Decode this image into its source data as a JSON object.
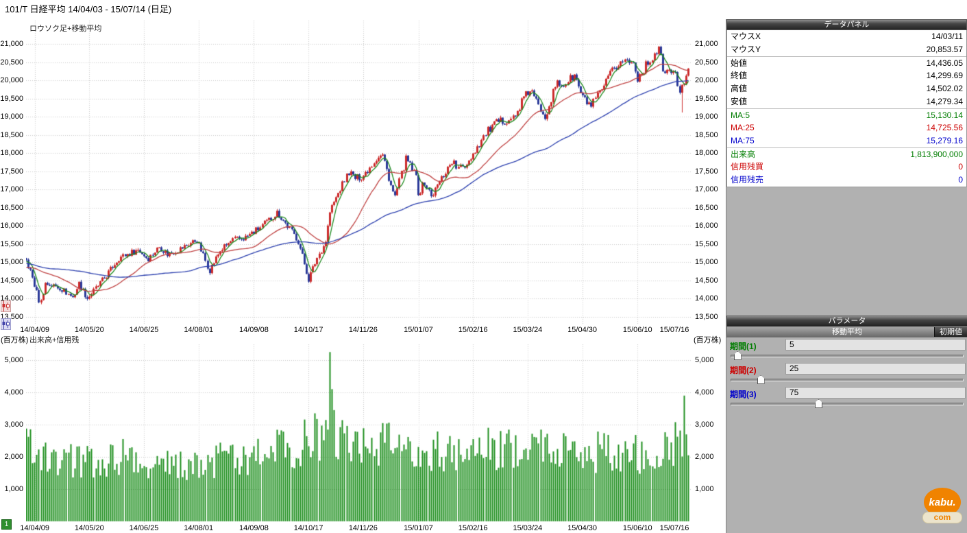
{
  "title": "101/T 日経平均  14/04/03 - 15/07/14 (日足)",
  "page_indicator": "1",
  "logo": {
    "text_top": "kabu.",
    "text_bottom": "com",
    "color": "#f08300"
  },
  "data_panel": {
    "title": "データパネル",
    "rows": [
      {
        "label": "マウスX",
        "value": "14/03/11",
        "color": "#000000"
      },
      {
        "label": "マウスY",
        "value": "20,853.57",
        "color": "#000000"
      },
      {
        "label": "始値",
        "value": "14,436.05",
        "color": "#000000"
      },
      {
        "label": "終値",
        "value": "14,299.69",
        "color": "#000000"
      },
      {
        "label": "高値",
        "value": "14,502.02",
        "color": "#000000"
      },
      {
        "label": "安値",
        "value": "14,279.34",
        "color": "#000000"
      },
      {
        "label": "MA:5",
        "value": "15,130.14",
        "color": "#007d00"
      },
      {
        "label": "MA:25",
        "value": "14,725.56",
        "color": "#cc0000"
      },
      {
        "label": "MA:75",
        "value": "15,279.16",
        "color": "#0000cc"
      },
      {
        "label": "出来高",
        "value": "1,813,900,000",
        "color": "#007d00"
      },
      {
        "label": "信用残買",
        "value": "0",
        "color": "#cc0000"
      },
      {
        "label": "信用残売",
        "value": "0",
        "color": "#0000cc"
      }
    ]
  },
  "parameters": {
    "title": "パラメータ",
    "subtitle": "移動平均",
    "reset_button": "初期値",
    "sliders": [
      {
        "label": "期間(1)",
        "value": "5",
        "color": "#007d00",
        "thumb_percent": 2
      },
      {
        "label": "期間(2)",
        "value": "25",
        "color": "#cc0000",
        "thumb_percent": 12
      },
      {
        "label": "期間(3)",
        "value": "75",
        "color": "#0000cc",
        "thumb_percent": 37
      }
    ]
  },
  "chart_data": {
    "price": {
      "type": "candlestick",
      "overlay_label": "ロウソク足+移動平均",
      "date_range": [
        "14/04/03",
        "15/07/14"
      ],
      "y_ticks": [
        21000,
        20500,
        20000,
        19500,
        19000,
        18500,
        18000,
        17500,
        17000,
        16500,
        16000,
        15500,
        15000,
        14500,
        14000,
        13500
      ],
      "x_axis_labels": [
        {
          "text": "14/04/09",
          "t": 0.013
        },
        {
          "text": "14/05/20",
          "t": 0.095
        },
        {
          "text": "14/06/25",
          "t": 0.177
        },
        {
          "text": "14/08/01",
          "t": 0.259
        },
        {
          "text": "14/09/08",
          "t": 0.342
        },
        {
          "text": "14/10/17",
          "t": 0.424
        },
        {
          "text": "14/11/26",
          "t": 0.506
        },
        {
          "text": "15/01/07",
          "t": 0.589
        },
        {
          "text": "15/02/16",
          "t": 0.671
        },
        {
          "text": "15/03/24",
          "t": 0.753
        },
        {
          "text": "15/04/30",
          "t": 0.835
        },
        {
          "text": "15/06/10",
          "t": 0.918
        },
        {
          "text": "15/07/16",
          "t": 1.0
        }
      ],
      "num_slots": 317,
      "last_candle_index": 314,
      "history_days": 95,
      "up_color": "#cc2b2b",
      "down_color": "#2b3a99",
      "history_waypoints": [
        [
          -0.3,
          15900
        ],
        [
          -0.28,
          16250
        ],
        [
          -0.25,
          15650
        ],
        [
          -0.21,
          15300
        ],
        [
          -0.19,
          14400
        ],
        [
          -0.15,
          14900
        ],
        [
          -0.11,
          15400
        ],
        [
          -0.065,
          14700
        ],
        [
          -0.04,
          14800
        ],
        [
          -0.02,
          14900
        ]
      ],
      "close_waypoints": [
        [
          0.0,
          15050
        ],
        [
          0.009,
          14610
        ],
        [
          0.019,
          13960
        ],
        [
          0.022,
          13910
        ],
        [
          0.028,
          14420
        ],
        [
          0.051,
          14300
        ],
        [
          0.07,
          14030
        ],
        [
          0.079,
          14420
        ],
        [
          0.092,
          14010
        ],
        [
          0.12,
          14630
        ],
        [
          0.139,
          15120
        ],
        [
          0.168,
          15350
        ],
        [
          0.183,
          15100
        ],
        [
          0.2,
          15440
        ],
        [
          0.212,
          15220
        ],
        [
          0.231,
          15370
        ],
        [
          0.256,
          15620
        ],
        [
          0.275,
          14780
        ],
        [
          0.291,
          15320
        ],
        [
          0.31,
          15610
        ],
        [
          0.328,
          15670
        ],
        [
          0.351,
          15950
        ],
        [
          0.377,
          16370
        ],
        [
          0.389,
          16080
        ],
        [
          0.408,
          15600
        ],
        [
          0.418,
          14940
        ],
        [
          0.424,
          14530
        ],
        [
          0.437,
          15140
        ],
        [
          0.449,
          15550
        ],
        [
          0.456,
          16410
        ],
        [
          0.468,
          16880
        ],
        [
          0.484,
          17490
        ],
        [
          0.494,
          17300
        ],
        [
          0.506,
          17380
        ],
        [
          0.528,
          17920
        ],
        [
          0.535,
          17940
        ],
        [
          0.553,
          16760
        ],
        [
          0.57,
          17850
        ],
        [
          0.582,
          17450
        ],
        [
          0.585,
          17410
        ],
        [
          0.589,
          16880
        ],
        [
          0.598,
          17200
        ],
        [
          0.608,
          16800
        ],
        [
          0.623,
          17300
        ],
        [
          0.64,
          17800
        ],
        [
          0.647,
          17560
        ],
        [
          0.658,
          17650
        ],
        [
          0.671,
          17990
        ],
        [
          0.692,
          18600
        ],
        [
          0.706,
          18830
        ],
        [
          0.734,
          18990
        ],
        [
          0.744,
          19440
        ],
        [
          0.757,
          19750
        ],
        [
          0.769,
          19290
        ],
        [
          0.779,
          19030
        ],
        [
          0.796,
          19910
        ],
        [
          0.806,
          19870
        ],
        [
          0.823,
          20130
        ],
        [
          0.835,
          19520
        ],
        [
          0.848,
          19290
        ],
        [
          0.864,
          19730
        ],
        [
          0.88,
          20260
        ],
        [
          0.896,
          20560
        ],
        [
          0.913,
          20460
        ],
        [
          0.918,
          20050
        ],
        [
          0.93,
          20390
        ],
        [
          0.949,
          20870
        ],
        [
          0.959,
          20110
        ],
        [
          0.965,
          20330
        ],
        [
          0.975,
          20110
        ],
        [
          0.981,
          19740
        ],
        [
          0.984,
          19860
        ],
        [
          0.987,
          19780
        ],
        [
          0.991,
          20090
        ],
        [
          0.994,
          20390
        ]
      ],
      "wick_low_overrides": [
        [
          0.984,
          19115
        ]
      ],
      "moving_averages": [
        {
          "period": 5,
          "color": "#1e8a1e"
        },
        {
          "period": 25,
          "color": "#bf4040"
        },
        {
          "period": 75,
          "color": "#2b3fae"
        }
      ]
    },
    "volume": {
      "type": "bar",
      "overlay_label": "出来高+信用残",
      "unit_label": "(百万株)",
      "y_ticks": [
        5000,
        4000,
        3000,
        2000,
        1000
      ],
      "bar_color": "#1f8f1f",
      "envelope_waypoints": [
        [
          -0.02,
          2200
        ],
        [
          0.0,
          2300
        ],
        [
          0.05,
          2000
        ],
        [
          0.1,
          1800
        ],
        [
          0.15,
          2100
        ],
        [
          0.2,
          1700
        ],
        [
          0.25,
          1800
        ],
        [
          0.3,
          1900
        ],
        [
          0.35,
          2100
        ],
        [
          0.4,
          2300
        ],
        [
          0.43,
          2600
        ],
        [
          0.46,
          2800
        ],
        [
          0.49,
          2400
        ],
        [
          0.52,
          2300
        ],
        [
          0.55,
          2400
        ],
        [
          0.58,
          2100
        ],
        [
          0.62,
          2200
        ],
        [
          0.67,
          2200
        ],
        [
          0.72,
          2300
        ],
        [
          0.76,
          2400
        ],
        [
          0.8,
          2200
        ],
        [
          0.84,
          2100
        ],
        [
          0.88,
          2200
        ],
        [
          0.92,
          2100
        ],
        [
          0.95,
          2300
        ],
        [
          0.98,
          2500
        ],
        [
          1.0,
          2400
        ]
      ],
      "spikes": [
        [
          0.456,
          5250
        ],
        [
          0.459,
          4100
        ],
        [
          0.462,
          3450
        ],
        [
          0.988,
          3900
        ]
      ]
    }
  }
}
